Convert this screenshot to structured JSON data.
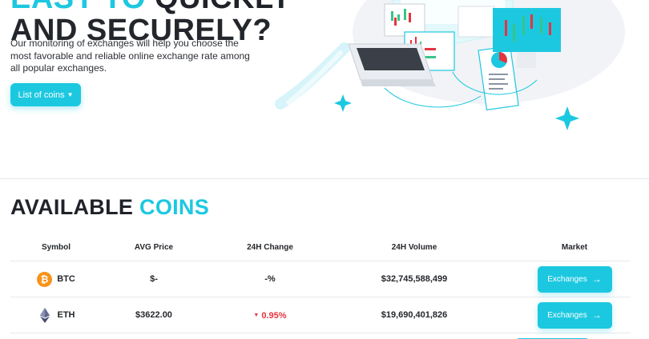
{
  "hero": {
    "title_line1_accent": "EASY TO",
    "title_line1_rest": " QUICKLY",
    "title_line2": "AND SECURELY?",
    "description": "Our monitoring of exchanges will help you choose the most favorable and reliable online exchange rate among all popular exchanges.",
    "list_button_label": "List of coins"
  },
  "coins_section": {
    "title_dark": "AVAILABLE",
    "title_accent": "COINS"
  },
  "table": {
    "headers": [
      "Symbol",
      "AVG Price",
      "24H Change",
      "24H Volume",
      "Market"
    ],
    "rows": [
      {
        "symbol": "BTC",
        "icon": "bitcoin-icon",
        "price": "$-",
        "change": "-%",
        "change_direction": "none",
        "volume": "$32,745,588,499",
        "market_label": "Exchanges"
      },
      {
        "symbol": "ETH",
        "icon": "ethereum-icon",
        "price": "$3622.00",
        "change": "0.95%",
        "change_direction": "down",
        "volume": "$19,690,401,826",
        "market_label": "Exchanges"
      }
    ]
  },
  "colors": {
    "accent": "#1cc8e0",
    "negative": "#e5343f",
    "btc": "#f7931a",
    "text": "#23262b"
  }
}
